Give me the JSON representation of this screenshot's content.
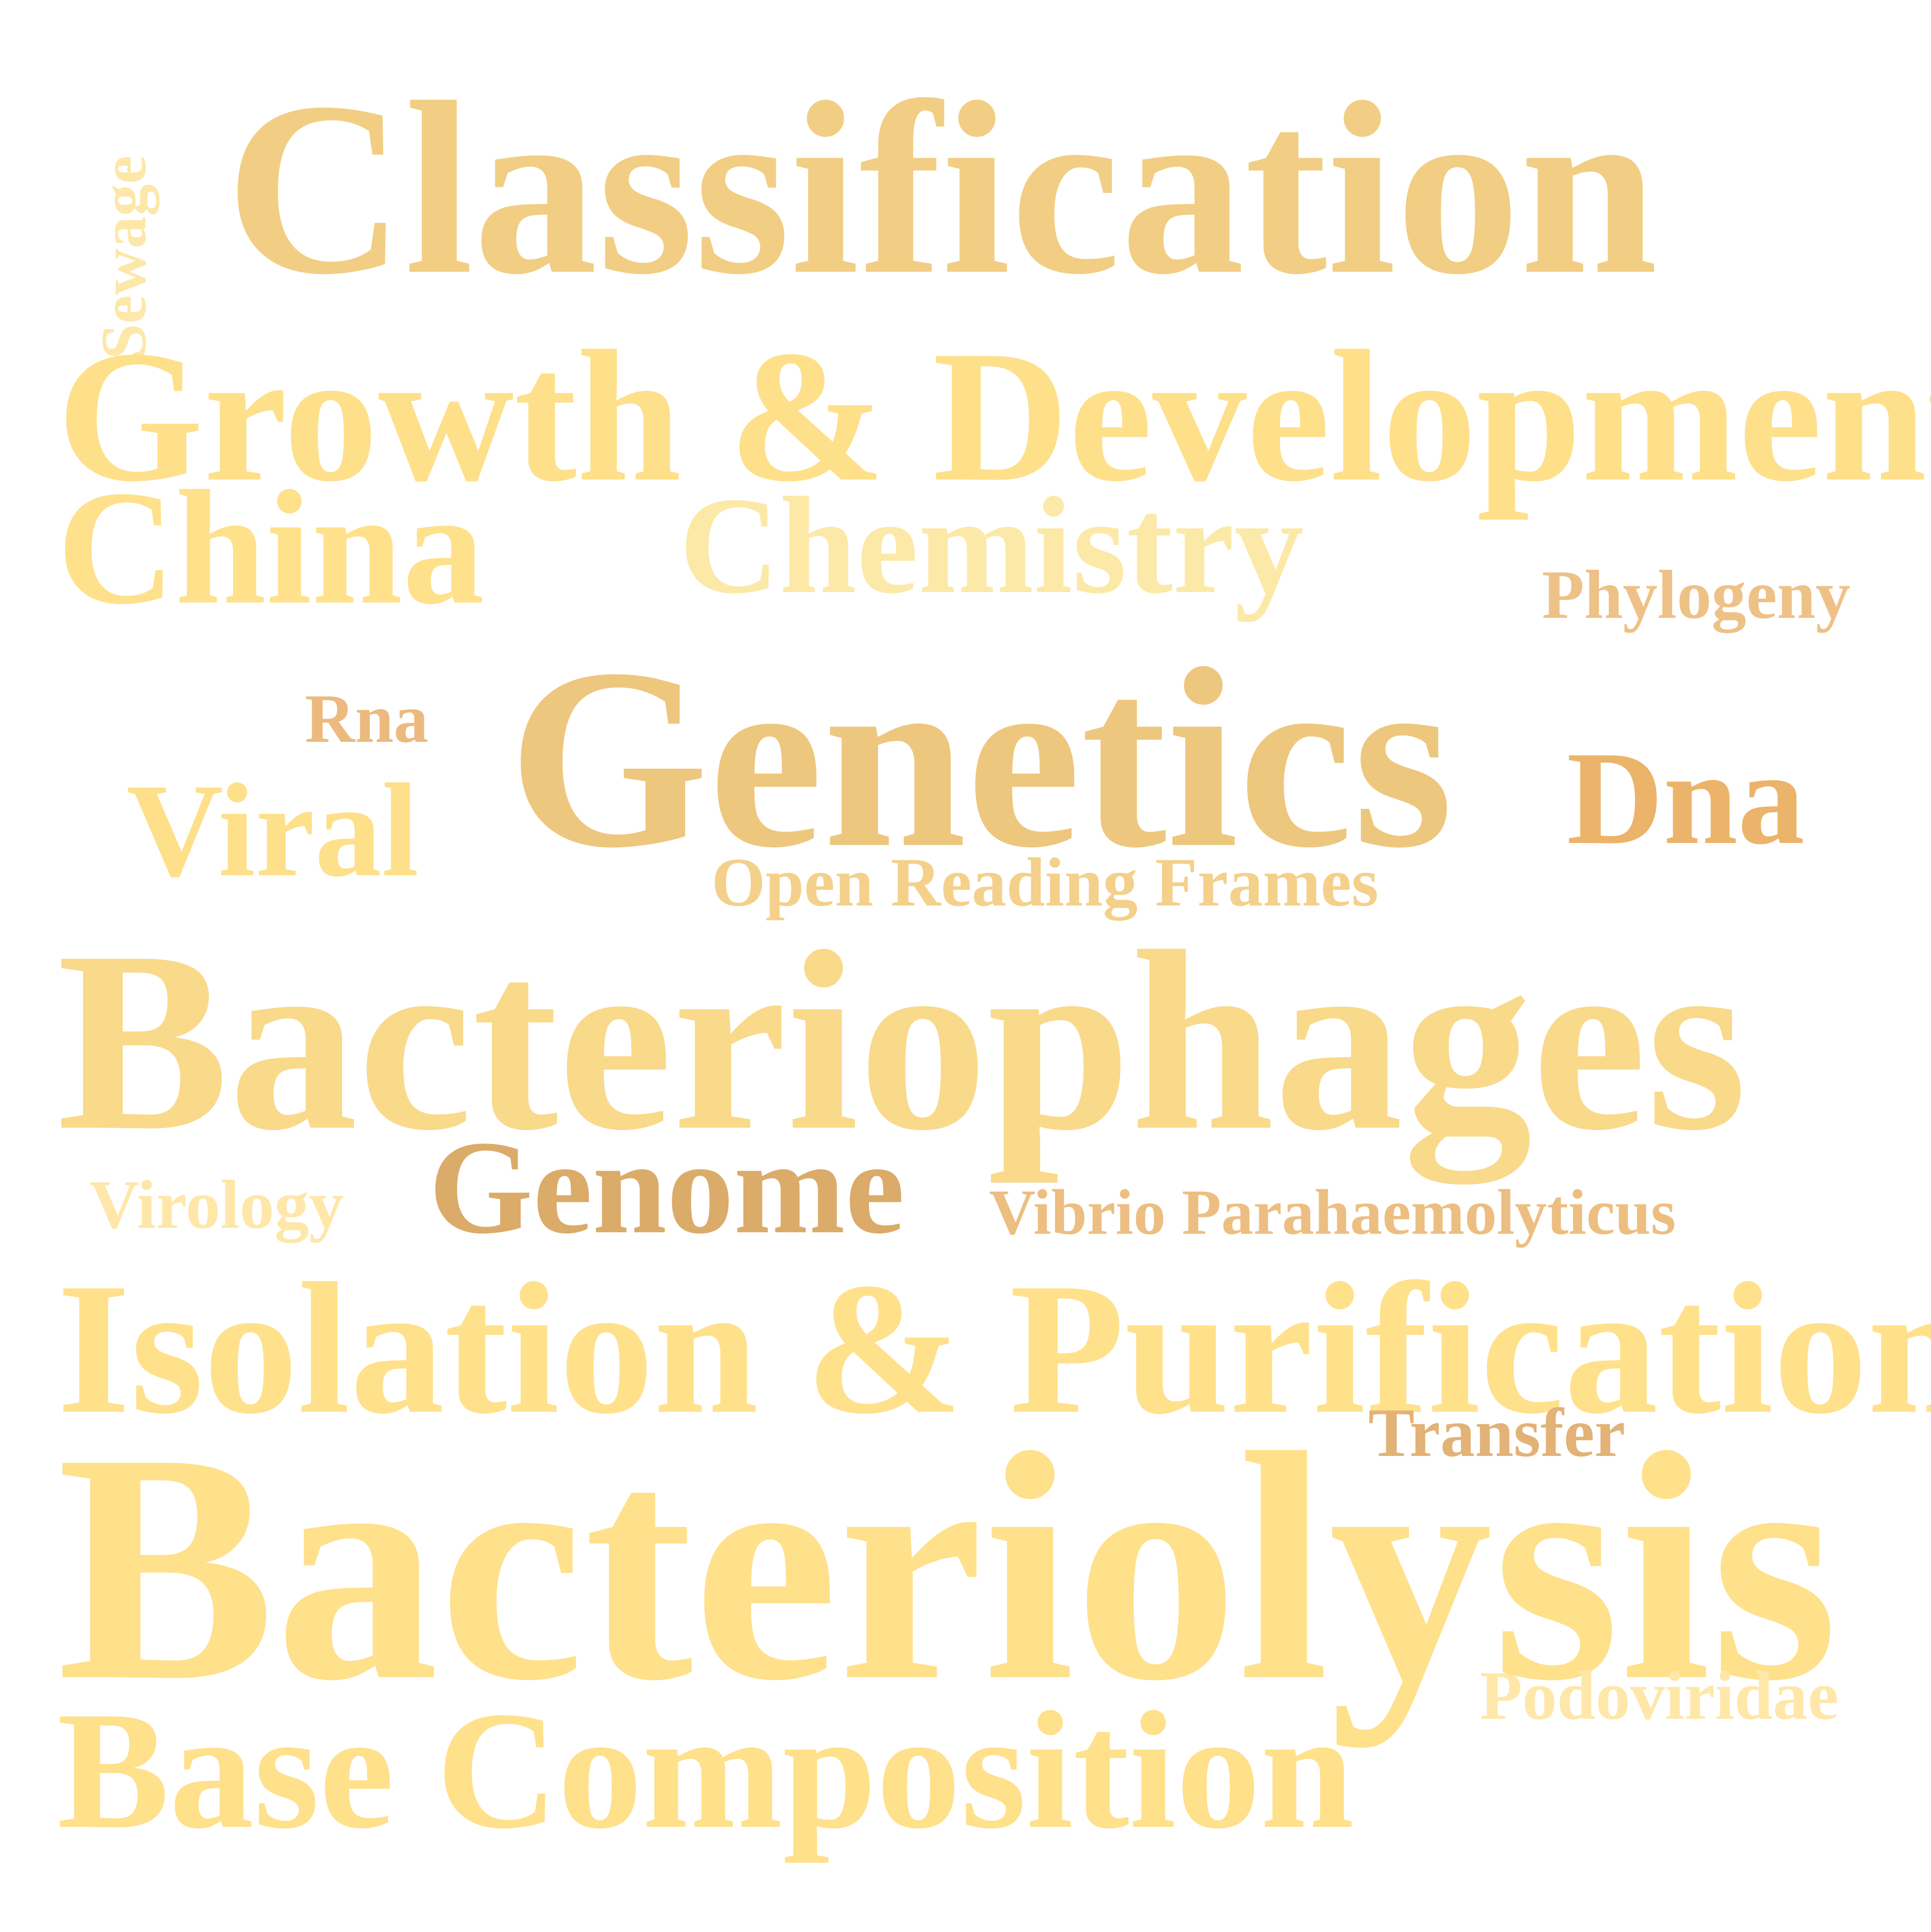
{
  "word_cloud": {
    "words": [
      {
        "text": "Classification",
        "color": "#F1CE83"
      },
      {
        "text": "Sewage",
        "color": "#FDE7A9"
      },
      {
        "text": "Growth & Development",
        "color": "#FEE08B"
      },
      {
        "text": "China",
        "color": "#FFE18C"
      },
      {
        "text": "Chemistry",
        "color": "#FCE9A8"
      },
      {
        "text": "Phylogeny",
        "color": "#EEC187"
      },
      {
        "text": "Rna",
        "color": "#ECBA7E"
      },
      {
        "text": "Genetics",
        "color": "#EDC77E"
      },
      {
        "text": "Dna",
        "color": "#EBB46A"
      },
      {
        "text": "Viral",
        "color": "#FEE08B"
      },
      {
        "text": "Open Reading Frames",
        "color": "#F4D08B"
      },
      {
        "text": "Bacteriophages",
        "color": "#F9D98A"
      },
      {
        "text": "Virology",
        "color": "#FEE7A9"
      },
      {
        "text": "Genome",
        "color": "#DBAB6A"
      },
      {
        "text": "Vibrio Parahaemolyticus",
        "color": "#EDBE81"
      },
      {
        "text": "Isolation & Purification",
        "color": "#FFE18C"
      },
      {
        "text": "Transfer",
        "color": "#E2B277"
      },
      {
        "text": "Bacteriolysis",
        "color": "#FFE08B"
      },
      {
        "text": "Podoviridae",
        "color": "#FEE7A9"
      },
      {
        "text": "Base Composition",
        "color": "#FFE08B"
      }
    ]
  }
}
